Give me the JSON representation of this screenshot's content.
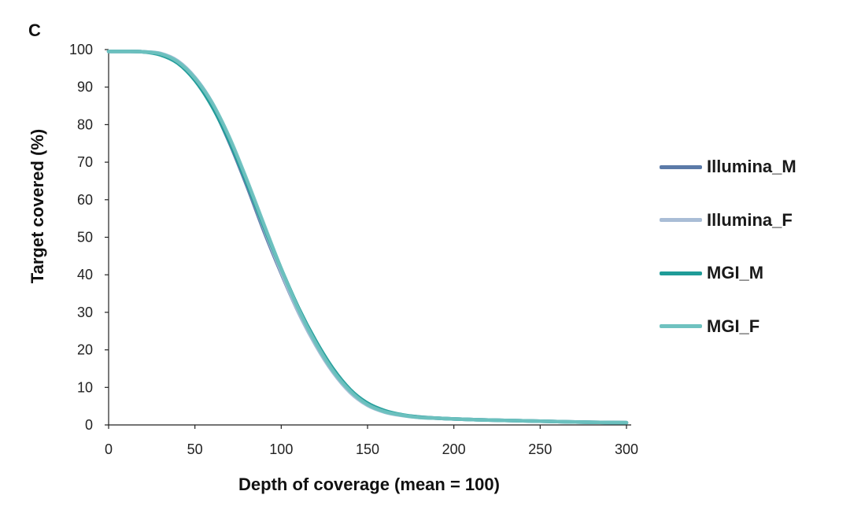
{
  "panel_label": "C",
  "chart_data": {
    "type": "line",
    "title": "",
    "xlabel": "Depth of coverage (mean = 100)",
    "ylabel": "Target covered (%)",
    "xlim": [
      0,
      300
    ],
    "ylim": [
      0,
      100
    ],
    "xticks": [
      0,
      50,
      100,
      150,
      200,
      250,
      300
    ],
    "yticks": [
      0,
      10,
      20,
      30,
      40,
      50,
      60,
      70,
      80,
      90,
      100
    ],
    "grid": false,
    "legend_position": "right",
    "x": [
      0,
      10,
      20,
      30,
      40,
      50,
      60,
      70,
      80,
      90,
      100,
      110,
      120,
      130,
      140,
      150,
      160,
      170,
      180,
      190,
      200,
      220,
      240,
      260,
      280,
      300
    ],
    "series": [
      {
        "name": "Illumina_M",
        "color": "#5b7aa8",
        "values": [
          99.5,
          99.5,
          99.4,
          98.8,
          96.6,
          92.0,
          85.0,
          75.2,
          63.8,
          51.6,
          40.4,
          30.0,
          21.4,
          14.2,
          9.0,
          5.6,
          3.6,
          2.6,
          2.1,
          1.8,
          1.6,
          1.3,
          1.1,
          0.9,
          0.7,
          0.6
        ]
      },
      {
        "name": "Illumina_F",
        "color": "#a9bdd6",
        "values": [
          99.5,
          99.5,
          99.4,
          99.0,
          97.0,
          92.6,
          85.8,
          76.2,
          64.8,
          52.4,
          40.8,
          30.0,
          21.2,
          14.0,
          8.6,
          5.2,
          3.4,
          2.5,
          2.0,
          1.8,
          1.6,
          1.3,
          1.1,
          0.9,
          0.7,
          0.6
        ]
      },
      {
        "name": "MGI_M",
        "color": "#1f9c98",
        "values": [
          99.5,
          99.5,
          99.4,
          98.6,
          96.4,
          91.8,
          84.8,
          75.6,
          64.6,
          52.8,
          41.6,
          31.2,
          22.4,
          15.0,
          9.4,
          5.8,
          3.8,
          2.7,
          2.1,
          1.8,
          1.6,
          1.3,
          1.1,
          0.9,
          0.7,
          0.6
        ]
      },
      {
        "name": "MGI_F",
        "color": "#6fc2c0",
        "values": [
          99.5,
          99.5,
          99.4,
          98.9,
          96.8,
          92.4,
          85.8,
          76.6,
          65.4,
          53.4,
          41.6,
          30.8,
          21.8,
          14.4,
          9.0,
          5.4,
          3.5,
          2.6,
          2.0,
          1.8,
          1.6,
          1.3,
          1.1,
          0.9,
          0.7,
          0.6
        ]
      }
    ]
  }
}
